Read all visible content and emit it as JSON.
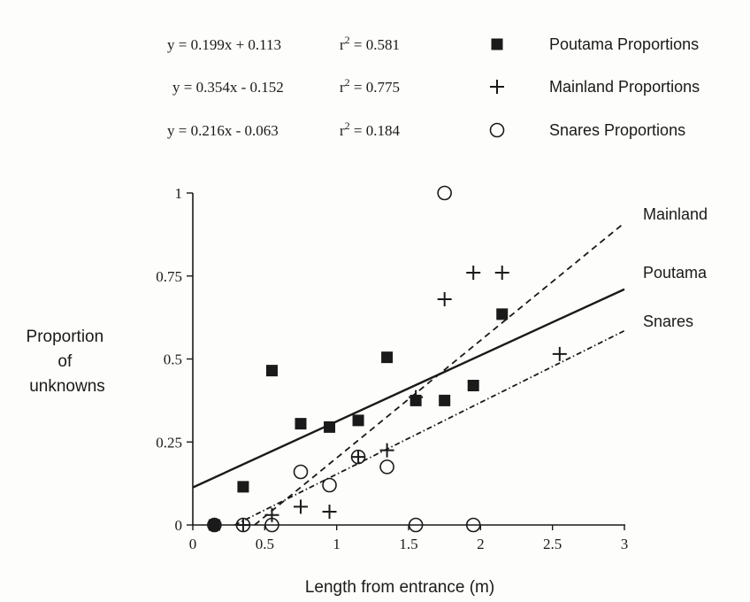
{
  "chart_data": {
    "type": "scatter",
    "xlabel": "Length from entrance (m)",
    "ylabel_lines": [
      "Proportion",
      "of",
      "unknowns"
    ],
    "xlim": [
      0,
      3
    ],
    "ylim": [
      0,
      1
    ],
    "x_ticks": [
      {
        "value": 0,
        "label": "0"
      },
      {
        "value": 0.5,
        "label": "0.5"
      },
      {
        "value": 1,
        "label": "1"
      },
      {
        "value": 1.5,
        "label": "1.5"
      },
      {
        "value": 2,
        "label": "2"
      },
      {
        "value": 2.5,
        "label": "2.5"
      },
      {
        "value": 3,
        "label": "3"
      }
    ],
    "y_ticks": [
      {
        "value": 0,
        "label": "0"
      },
      {
        "value": 0.25,
        "label": "0.25"
      },
      {
        "value": 0.5,
        "label": "0.5"
      },
      {
        "value": 0.75,
        "label": "0.75"
      },
      {
        "value": 1,
        "label": "1"
      }
    ],
    "grid": false,
    "legend_position": "top",
    "series": [
      {
        "name": "Poutama Proportions",
        "marker": "filled-square",
        "equation": "y = 0.199x + 0.113",
        "r2_label": "r",
        "r2_value": " = 0.581",
        "fit": {
          "label": "Poutama",
          "slope": 0.199,
          "intercept": 0.113,
          "x_range": [
            0,
            3
          ],
          "style": "solid"
        },
        "points": [
          [
            0.15,
            0.0
          ],
          [
            0.35,
            0.115
          ],
          [
            0.55,
            0.465
          ],
          [
            0.75,
            0.305
          ],
          [
            0.95,
            0.295
          ],
          [
            1.15,
            0.315
          ],
          [
            1.35,
            0.505
          ],
          [
            1.55,
            0.375
          ],
          [
            1.75,
            0.375
          ],
          [
            1.95,
            0.42
          ],
          [
            2.15,
            0.635
          ]
        ]
      },
      {
        "name": "Mainland Proportions",
        "marker": "plus",
        "equation": "y = 0.354x - 0.152",
        "r2_label": "r",
        "r2_value": " = 0.775",
        "fit": {
          "label": "Mainland",
          "slope": 0.354,
          "intercept": -0.152,
          "x_range": [
            0.43,
            3
          ],
          "style": "dashed"
        },
        "points": [
          [
            0.15,
            0.0
          ],
          [
            0.35,
            0.0
          ],
          [
            0.55,
            0.03
          ],
          [
            0.75,
            0.055
          ],
          [
            0.95,
            0.04
          ],
          [
            1.15,
            0.205
          ],
          [
            1.35,
            0.225
          ],
          [
            1.55,
            0.385
          ],
          [
            1.75,
            0.68
          ],
          [
            1.95,
            0.76
          ],
          [
            2.15,
            0.76
          ],
          [
            2.55,
            0.515
          ]
        ]
      },
      {
        "name": "Snares Proportions",
        "marker": "open-circle",
        "equation": "y = 0.216x - 0.063",
        "r2_label": "r",
        "r2_value": " = 0.184",
        "fit": {
          "label": "Snares",
          "slope": 0.216,
          "intercept": -0.063,
          "x_range": [
            0.29,
            3
          ],
          "style": "dash-dot"
        },
        "points": [
          [
            0.15,
            0.0
          ],
          [
            0.35,
            0.0
          ],
          [
            0.55,
            0.0
          ],
          [
            0.75,
            0.16
          ],
          [
            0.95,
            0.12
          ],
          [
            1.15,
            0.205
          ],
          [
            1.35,
            0.175
          ],
          [
            1.55,
            0.0
          ],
          [
            1.75,
            1.0
          ],
          [
            1.95,
            0.0
          ]
        ]
      }
    ]
  }
}
